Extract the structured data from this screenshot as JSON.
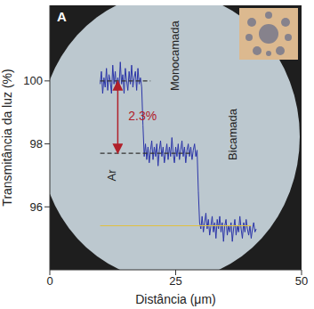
{
  "chart_data": {
    "type": "line",
    "title": "A",
    "x_label": "Distância (μm)",
    "y_label": "Transmitância da luz (%)",
    "xlim": [
      0,
      50
    ],
    "xticks": [
      0,
      25,
      50
    ],
    "ylim": [
      94,
      102.4
    ],
    "yticks": [
      96,
      98,
      100
    ],
    "grid": false,
    "x": [
      10,
      10.25,
      10.5,
      10.75,
      11,
      11.25,
      11.5,
      11.75,
      12,
      12.25,
      12.5,
      12.75,
      13,
      13.25,
      13.5,
      13.75,
      14,
      14.25,
      14.5,
      14.75,
      15,
      15.25,
      15.5,
      15.75,
      16,
      16.25,
      16.5,
      16.75,
      17,
      17.25,
      17.5,
      17.75,
      18,
      18.25,
      18.5,
      18.75,
      19,
      19.25,
      19.5,
      19.75,
      20,
      20.25,
      20.5,
      20.75,
      21,
      21.25,
      21.5,
      21.75,
      22,
      22.25,
      22.5,
      22.75,
      23,
      23.25,
      23.5,
      23.75,
      24,
      24.25,
      24.5,
      24.75,
      25,
      25.25,
      25.5,
      25.75,
      26,
      26.25,
      26.5,
      26.75,
      27,
      27.25,
      27.5,
      27.75,
      28,
      28.25,
      28.5,
      28.75,
      29,
      29.25,
      29.5,
      29.75,
      30,
      30.25,
      30.5,
      30.75,
      31,
      31.25,
      31.5,
      31.75,
      32,
      32.25,
      32.5,
      32.75,
      33,
      33.25,
      33.5,
      33.75,
      34,
      34.25,
      34.5,
      34.75,
      35,
      35.25,
      35.5,
      35.75,
      36,
      36.25,
      36.5,
      36.75,
      37,
      37.25,
      37.5,
      37.75,
      38,
      38.25,
      38.5,
      38.75,
      39,
      39.25,
      39.5,
      39.75,
      40,
      40.25,
      40.5,
      40.75,
      41
    ],
    "series": [
      {
        "color": "#2b35a8",
        "values": [
          99.9,
          100.3,
          99.6,
          100.1,
          99.8,
          100.4,
          99.7,
          100.2,
          100.0,
          99.6,
          100.5,
          99.9,
          100.3,
          99.7,
          100.1,
          99.8,
          100.6,
          99.9,
          100.2,
          99.6,
          100.4,
          100.0,
          99.7,
          100.3,
          99.9,
          100.5,
          99.8,
          100.1,
          100.3,
          99.7,
          100.4,
          99.9,
          100.1,
          99.8,
          98.6,
          97.6,
          98.0,
          97.5,
          97.9,
          97.4,
          97.8,
          98.1,
          97.5,
          97.9,
          97.6,
          98.0,
          97.3,
          97.8,
          98.1,
          97.6,
          97.9,
          97.4,
          97.7,
          98.0,
          97.5,
          97.9,
          97.6,
          98.2,
          97.7,
          97.4,
          97.9,
          97.6,
          98.0,
          97.5,
          97.8,
          98.1,
          97.6,
          97.9,
          97.4,
          97.8,
          98.0,
          97.6,
          97.9,
          97.5,
          97.8,
          98.0,
          97.6,
          97.8,
          96.5,
          95.5,
          95.3,
          95.7,
          95.2,
          95.5,
          95.8,
          95.3,
          95.6,
          95.1,
          95.4,
          95.7,
          95.2,
          95.5,
          95.0,
          95.6,
          95.3,
          95.7,
          95.2,
          95.5,
          94.9,
          95.4,
          95.6,
          95.1,
          95.4,
          95.2,
          95.5,
          94.9,
          95.3,
          95.6,
          95.1,
          95.4,
          95.2,
          95.7,
          95.3,
          95.0,
          95.5,
          95.2,
          95.6,
          95.3,
          95.1,
          95.4,
          95.0,
          95.3,
          95.5,
          95.2,
          95.3
        ]
      }
    ],
    "hlines": [
      {
        "y": 100,
        "xmin": 10,
        "xmax": 20,
        "color": "#333333",
        "line_style": "dashed"
      },
      {
        "y": 97.7,
        "xmin": 10,
        "xmax": 28,
        "color": "#333333",
        "line_style": "dashed"
      },
      {
        "y": 95.4,
        "xmin": 10,
        "xmax": 40,
        "color": "#e0c040",
        "line_style": "solid"
      }
    ],
    "annotations": [
      {
        "text": "2.3%",
        "x": 15.6,
        "y": 98.85,
        "color": "#b0202a",
        "arrow_from": 100,
        "arrow_to": 97.7,
        "arrow_x": 13.5
      },
      {
        "text": "Ar",
        "x": 12.5,
        "y": 97.0,
        "color": "#222222"
      },
      {
        "text": "Monocamada",
        "x": 25,
        "y": 100.8,
        "color": "#222222"
      },
      {
        "text": "Bicamada",
        "x": 36.5,
        "y": 98.3,
        "color": "#222222"
      }
    ]
  }
}
